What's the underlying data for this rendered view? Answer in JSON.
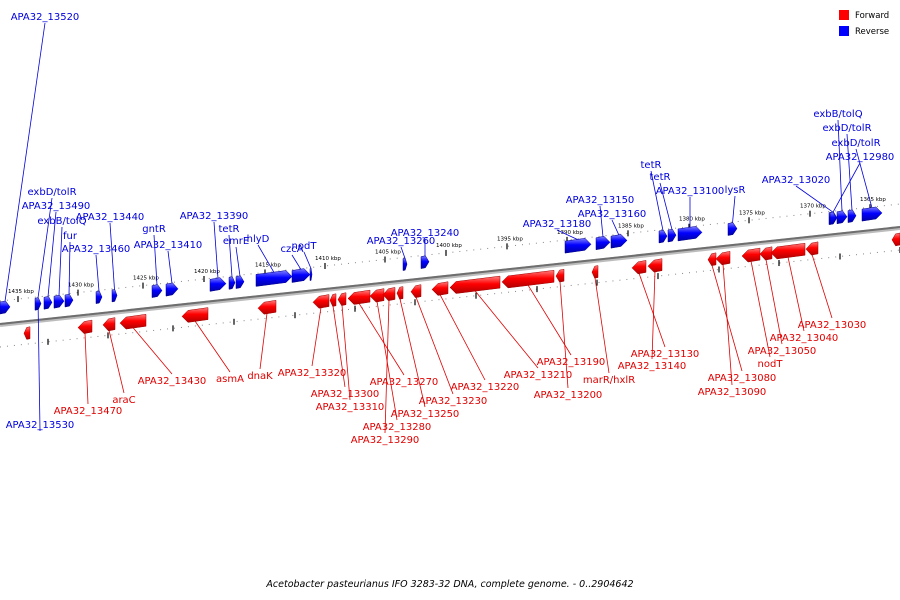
{
  "caption": "Acetobacter pasteurianus IFO 3283-32 DNA, complete genome. - 0..2904642",
  "legend": [
    {
      "label": "Forward",
      "color": "#ff0000"
    },
    {
      "label": "Reverse",
      "color": "#0000ff"
    }
  ],
  "ticks": [
    "1435 kbp",
    "1430 kbp",
    "1425 kbp",
    "1420 kbp",
    "1415 kbp",
    "1410 kbp",
    "1405 kbp",
    "1400 kbp",
    "1395 kbp",
    "1390 kbp",
    "1385 kbp",
    "1380 kbp",
    "1375 kbp",
    "1370 kbp",
    "1365 kbp"
  ],
  "reverse_genes": [
    {
      "id": "r1",
      "label": "APA32_13520"
    },
    {
      "id": "r2",
      "label": "exbD/tolR"
    },
    {
      "id": "r3",
      "label": "APA32_13490"
    },
    {
      "id": "r4",
      "label": "exbB/tolQ"
    },
    {
      "id": "r5",
      "label": "fur"
    },
    {
      "id": "r6",
      "label": "APA32_13460"
    },
    {
      "id": "r7",
      "label": "APA32_13440"
    },
    {
      "id": "r8",
      "label": "gntR"
    },
    {
      "id": "r9",
      "label": "APA32_13410"
    },
    {
      "id": "r10",
      "label": "APA32_13390"
    },
    {
      "id": "r11",
      "label": "tetR"
    },
    {
      "id": "r12",
      "label": "emrE"
    },
    {
      "id": "r13",
      "label": "hlyD"
    },
    {
      "id": "r14",
      "label": "czcA"
    },
    {
      "id": "r15",
      "label": "nodT"
    },
    {
      "id": "r16",
      "label": "APA32_13260"
    },
    {
      "id": "r17",
      "label": "APA32_13240"
    },
    {
      "id": "r18",
      "label": "APA32_13180"
    },
    {
      "id": "r19",
      "label": "APA32_13150"
    },
    {
      "id": "r20",
      "label": "APA32_13160"
    },
    {
      "id": "r21",
      "label": "tetR"
    },
    {
      "id": "r22",
      "label": "tetR"
    },
    {
      "id": "r23",
      "label": "APA32_13100"
    },
    {
      "id": "r24",
      "label": "lysR"
    },
    {
      "id": "r25",
      "label": "APA32_13020"
    },
    {
      "id": "r26",
      "label": "exbB/tolQ"
    },
    {
      "id": "r27",
      "label": "exbD/tolR"
    },
    {
      "id": "r28",
      "label": "exbD/tolR"
    },
    {
      "id": "r29",
      "label": "APA32_12980"
    },
    {
      "id": "r30",
      "label": "APA32_13530"
    }
  ],
  "forward_genes": [
    {
      "id": "f1",
      "label": "APA32_13470"
    },
    {
      "id": "f2",
      "label": "araC"
    },
    {
      "id": "f3",
      "label": "APA32_13430"
    },
    {
      "id": "f4",
      "label": "asmA"
    },
    {
      "id": "f5",
      "label": "dnaK"
    },
    {
      "id": "f6",
      "label": "APA32_13320"
    },
    {
      "id": "f7",
      "label": "APA32_13300"
    },
    {
      "id": "f8",
      "label": "APA32_13310"
    },
    {
      "id": "f9",
      "label": "APA32_13270"
    },
    {
      "id": "f10",
      "label": "APA32_13280"
    },
    {
      "id": "f11",
      "label": "APA32_13290"
    },
    {
      "id": "f12",
      "label": "APA32_13250"
    },
    {
      "id": "f13",
      "label": "APA32_13230"
    },
    {
      "id": "f14",
      "label": "APA32_13220"
    },
    {
      "id": "f15",
      "label": "APA32_13210"
    },
    {
      "id": "f16",
      "label": "APA32_13190"
    },
    {
      "id": "f17",
      "label": "APA32_13200"
    },
    {
      "id": "f18",
      "label": "marR/hxlR"
    },
    {
      "id": "f19",
      "label": "APA32_13130"
    },
    {
      "id": "f20",
      "label": "APA32_13140"
    },
    {
      "id": "f21",
      "label": "APA32_13080"
    },
    {
      "id": "f22",
      "label": "APA32_13090"
    },
    {
      "id": "f23",
      "label": "nodT"
    },
    {
      "id": "f24",
      "label": "APA32_13050"
    },
    {
      "id": "f25",
      "label": "APA32_13040"
    },
    {
      "id": "f26",
      "label": "APA32_13030"
    }
  ]
}
